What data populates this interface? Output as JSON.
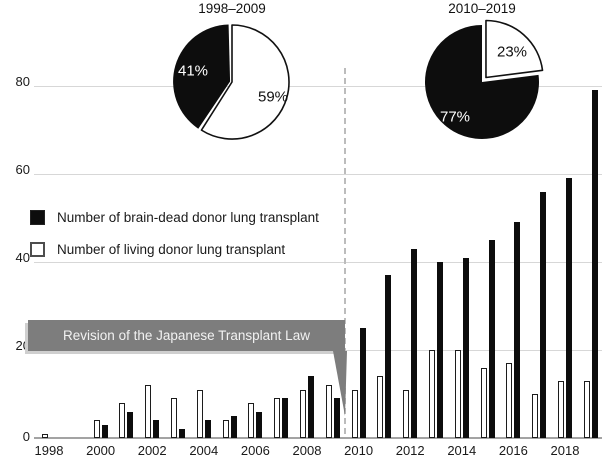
{
  "figure": {
    "pies": [
      {
        "title": "1998–2009",
        "slices": [
          {
            "name": "brain-dead donor",
            "pct": 41,
            "label": "41%",
            "color": "#0d0d0d"
          },
          {
            "name": "living donor",
            "pct": 59,
            "label": "59%",
            "color": "#ffffff"
          }
        ]
      },
      {
        "title": "2010–2019",
        "slices": [
          {
            "name": "brain-dead donor",
            "pct": 77,
            "label": "77%",
            "color": "#0d0d0d"
          },
          {
            "name": "living donor",
            "pct": 23,
            "label": "23%",
            "color": "#ffffff"
          }
        ]
      }
    ],
    "legend": [
      {
        "label": "Number of brain-dead donor lung transplant",
        "swatch_color": "#0d0d0d"
      },
      {
        "label": "Number of living donor lung transplant",
        "swatch_color": "#ffffff"
      }
    ],
    "annotation": "Revision of the Japanese Transplant Law"
  },
  "chart_data": {
    "type": "bar",
    "title": "",
    "xlabel": "",
    "ylabel": "",
    "x": [
      1998,
      1999,
      2000,
      2001,
      2002,
      2003,
      2004,
      2005,
      2006,
      2007,
      2008,
      2009,
      2010,
      2011,
      2012,
      2013,
      2014,
      2015,
      2016,
      2017,
      2018,
      2019
    ],
    "x_tick_labels": [
      "1998",
      "2000",
      "2002",
      "2004",
      "2006",
      "2008",
      "2010",
      "2012",
      "2014",
      "2016",
      "2018"
    ],
    "y_ticks": [
      0,
      20,
      40,
      60,
      80
    ],
    "ylim": [
      0,
      85
    ],
    "grid": true,
    "legend_position": "left-middle",
    "divider_between_years": [
      2009,
      2010
    ],
    "series": [
      {
        "name": "Number of living donor lung transplant",
        "color": "#ffffff",
        "values": [
          1,
          0,
          4,
          8,
          12,
          9,
          11,
          4,
          8,
          9,
          11,
          12,
          11,
          14,
          11,
          20,
          20,
          16,
          17,
          10,
          13,
          13
        ]
      },
      {
        "name": "Number of brain-dead donor lung transplant",
        "color": "#0d0d0d",
        "values": [
          0,
          0,
          3,
          6,
          4,
          2,
          4,
          5,
          6,
          9,
          14,
          9,
          25,
          37,
          43,
          40,
          41,
          45,
          49,
          56,
          59,
          79
        ]
      }
    ]
  }
}
